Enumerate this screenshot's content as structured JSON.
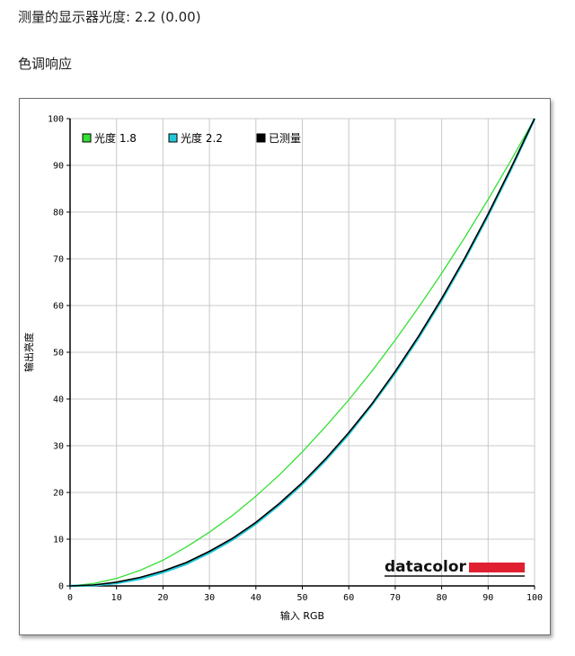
{
  "header": {
    "gamma_text": "测量的显示器光度: 2.2 (0.00)",
    "section_title": "色调响应"
  },
  "chart_data": {
    "type": "line",
    "title": "",
    "xlabel": "输入 RGB",
    "ylabel": "输出亮度",
    "xlim": [
      0,
      100
    ],
    "ylim": [
      0,
      100
    ],
    "x_ticks": [
      0,
      10,
      20,
      30,
      40,
      50,
      60,
      70,
      80,
      90,
      100
    ],
    "y_ticks": [
      0,
      10,
      20,
      30,
      40,
      50,
      60,
      70,
      80,
      90,
      100
    ],
    "grid": true,
    "legend_position": "top-left",
    "series": [
      {
        "name": "光度 1.8",
        "color": "#33e033",
        "x": [
          0,
          5,
          10,
          15,
          20,
          25,
          30,
          35,
          40,
          45,
          50,
          55,
          60,
          65,
          70,
          75,
          80,
          85,
          90,
          95,
          100
        ],
        "y": [
          0,
          0.5,
          1.6,
          3.3,
          5.5,
          8.3,
          11.5,
          15.1,
          19.2,
          23.7,
          28.7,
          34.1,
          39.8,
          46.0,
          52.6,
          59.6,
          66.9,
          74.6,
          82.7,
          91.2,
          100
        ]
      },
      {
        "name": "光度 2.2",
        "color": "#22c8d8",
        "x": [
          0,
          5,
          10,
          15,
          20,
          25,
          30,
          35,
          40,
          45,
          50,
          55,
          60,
          65,
          70,
          75,
          80,
          85,
          90,
          95,
          100
        ],
        "y": [
          0,
          0.1,
          0.6,
          1.5,
          2.9,
          4.7,
          7.1,
          9.9,
          13.3,
          17.3,
          21.8,
          26.9,
          32.5,
          38.8,
          45.6,
          53.1,
          61.2,
          69.9,
          79.3,
          89.3,
          100
        ]
      },
      {
        "name": "已测量",
        "color": "#000000",
        "x": [
          0,
          5,
          10,
          15,
          20,
          25,
          30,
          35,
          40,
          45,
          50,
          55,
          60,
          65,
          70,
          75,
          80,
          85,
          90,
          95,
          100
        ],
        "y": [
          0,
          0.2,
          0.8,
          1.8,
          3.2,
          5.0,
          7.4,
          10.2,
          13.6,
          17.6,
          22.1,
          27.2,
          32.8,
          39.0,
          45.9,
          53.4,
          61.5,
          70.2,
          79.6,
          89.6,
          100
        ]
      }
    ]
  },
  "logo": {
    "text": "datacolor",
    "bar_color": "#e02030"
  }
}
